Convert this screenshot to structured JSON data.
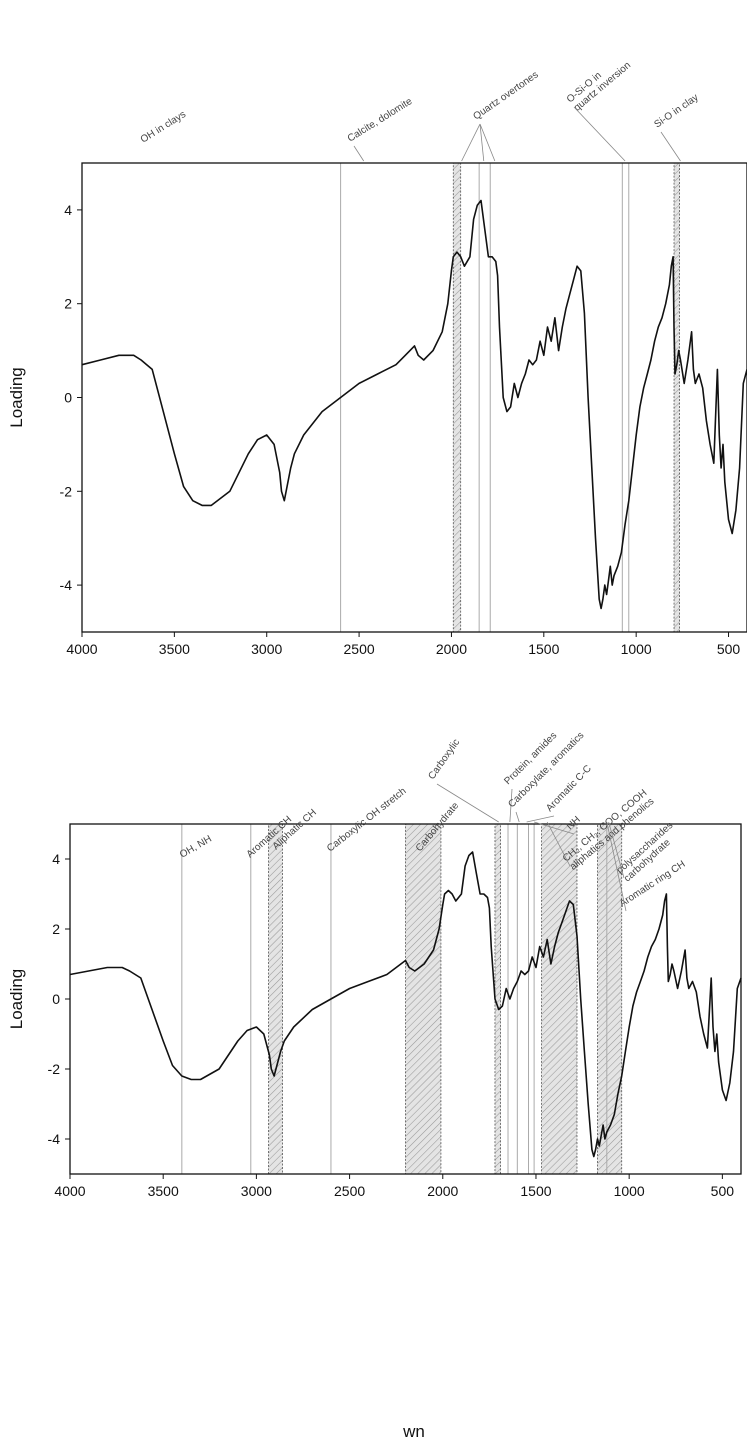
{
  "chart_data": [
    {
      "type": "line",
      "ylabel": "Loading",
      "xlabel": "",
      "xlim": [
        4000,
        400
      ],
      "ylim": [
        -5,
        5
      ],
      "xticks": [
        4000,
        3500,
        3000,
        2500,
        2000,
        1500,
        1000,
        500
      ],
      "yticks": [
        -4,
        -2,
        0,
        2,
        4
      ],
      "series": [
        {
          "x": [
            4000,
            3900,
            3800,
            3720,
            3680,
            3650,
            3620,
            3560,
            3500,
            3450,
            3400,
            3350,
            3300,
            3200,
            3100,
            3050,
            3000,
            2960,
            2930,
            2920,
            2905,
            2870,
            2850,
            2800,
            2700,
            2600,
            2500,
            2400,
            2300,
            2250,
            2200,
            2180,
            2150,
            2100,
            2050,
            2020,
            2000,
            1990,
            1970,
            1950,
            1930,
            1900,
            1880,
            1860,
            1840,
            1820,
            1800,
            1780,
            1760,
            1750,
            1740,
            1720,
            1700,
            1680,
            1660,
            1640,
            1620,
            1600,
            1580,
            1560,
            1540,
            1520,
            1500,
            1480,
            1460,
            1440,
            1420,
            1400,
            1380,
            1360,
            1340,
            1320,
            1300,
            1280,
            1260,
            1240,
            1220,
            1200,
            1190,
            1180,
            1170,
            1160,
            1150,
            1140,
            1130,
            1120,
            1100,
            1080,
            1060,
            1040,
            1020,
            1000,
            980,
            960,
            940,
            920,
            900,
            880,
            860,
            840,
            820,
            810,
            800,
            795,
            790,
            780,
            770,
            760,
            740,
            720,
            700,
            690,
            680,
            660,
            640,
            620,
            600,
            580,
            560,
            550,
            540,
            530,
            520,
            500,
            480,
            460,
            440,
            420,
            400
          ],
          "y": [
            0.7,
            0.8,
            0.9,
            0.9,
            0.8,
            0.7,
            0.6,
            -0.3,
            -1.2,
            -1.9,
            -2.2,
            -2.3,
            -2.3,
            -2.0,
            -1.2,
            -0.9,
            -0.8,
            -1.0,
            -1.6,
            -2.0,
            -2.2,
            -1.5,
            -1.2,
            -0.8,
            -0.3,
            0.0,
            0.3,
            0.5,
            0.7,
            0.9,
            1.1,
            0.9,
            0.8,
            1.0,
            1.4,
            2.0,
            2.7,
            3.0,
            3.1,
            3.0,
            2.8,
            3.0,
            3.8,
            4.1,
            4.2,
            3.6,
            3.0,
            3.0,
            2.9,
            2.6,
            1.5,
            0.0,
            -0.3,
            -0.2,
            0.3,
            0.0,
            0.3,
            0.5,
            0.8,
            0.7,
            0.8,
            1.2,
            0.9,
            1.5,
            1.2,
            1.7,
            1.0,
            1.5,
            1.9,
            2.2,
            2.5,
            2.8,
            2.7,
            1.8,
            0.0,
            -1.5,
            -3.0,
            -4.3,
            -4.5,
            -4.3,
            -4.0,
            -4.2,
            -3.9,
            -3.6,
            -4.0,
            -3.8,
            -3.6,
            -3.3,
            -2.7,
            -2.2,
            -1.5,
            -0.8,
            -0.2,
            0.2,
            0.5,
            0.8,
            1.2,
            1.5,
            1.7,
            2.0,
            2.4,
            2.8,
            3.0,
            1.5,
            0.5,
            0.7,
            1.0,
            0.8,
            0.3,
            0.8,
            1.4,
            0.6,
            0.3,
            0.5,
            0.2,
            -0.5,
            -1.0,
            -1.4,
            0.6,
            -0.8,
            -1.5,
            -1.0,
            -1.8,
            -2.6,
            -2.9,
            -2.4,
            -1.5,
            0.3,
            0.6
          ]
        }
      ],
      "annotations": [
        {
          "label": "OH in clays",
          "style": "none"
        },
        {
          "label": "Calcite, dolomite",
          "style": "line",
          "x": [
            2600
          ],
          "target": 2475
        },
        {
          "label": "Quartz overtones",
          "style": "hatch",
          "x": [
            1990,
            1950
          ],
          "lines": [
            1850,
            1790
          ],
          "targets": [
            1945,
            1825,
            1765
          ]
        },
        {
          "label": "O-Si-O in quartz inversion",
          "style": "line",
          "x": [
            1075,
            1040
          ],
          "target": 1060
        },
        {
          "label": "Si-O in clay",
          "style": "hatch",
          "x": [
            795,
            765
          ],
          "target": 760
        }
      ]
    },
    {
      "type": "line",
      "ylabel": "Loading",
      "xlabel": "wn",
      "xlim": [
        4000,
        400
      ],
      "ylim": [
        -5,
        5
      ],
      "xticks": [
        4000,
        3500,
        3000,
        2500,
        2000,
        1500,
        1000,
        500
      ],
      "yticks": [
        -4,
        -2,
        0,
        2,
        4
      ],
      "series": [
        {
          "x": [
            4000,
            3900,
            3800,
            3720,
            3680,
            3650,
            3620,
            3560,
            3500,
            3450,
            3400,
            3350,
            3300,
            3200,
            3100,
            3050,
            3000,
            2960,
            2930,
            2920,
            2905,
            2870,
            2850,
            2800,
            2700,
            2600,
            2500,
            2400,
            2300,
            2250,
            2200,
            2180,
            2150,
            2100,
            2050,
            2020,
            2000,
            1990,
            1970,
            1950,
            1930,
            1900,
            1880,
            1860,
            1840,
            1820,
            1800,
            1780,
            1760,
            1750,
            1740,
            1720,
            1700,
            1680,
            1660,
            1640,
            1620,
            1600,
            1580,
            1560,
            1540,
            1520,
            1500,
            1480,
            1460,
            1440,
            1420,
            1400,
            1380,
            1360,
            1340,
            1320,
            1300,
            1280,
            1260,
            1240,
            1220,
            1200,
            1190,
            1180,
            1170,
            1160,
            1150,
            1140,
            1130,
            1120,
            1100,
            1080,
            1060,
            1040,
            1020,
            1000,
            980,
            960,
            940,
            920,
            900,
            880,
            860,
            840,
            820,
            810,
            800,
            795,
            790,
            780,
            770,
            760,
            740,
            720,
            700,
            690,
            680,
            660,
            640,
            620,
            600,
            580,
            560,
            550,
            540,
            530,
            520,
            500,
            480,
            460,
            440,
            420,
            400
          ],
          "y": [
            0.7,
            0.8,
            0.9,
            0.9,
            0.8,
            0.7,
            0.6,
            -0.3,
            -1.2,
            -1.9,
            -2.2,
            -2.3,
            -2.3,
            -2.0,
            -1.2,
            -0.9,
            -0.8,
            -1.0,
            -1.6,
            -2.0,
            -2.2,
            -1.5,
            -1.2,
            -0.8,
            -0.3,
            0.0,
            0.3,
            0.5,
            0.7,
            0.9,
            1.1,
            0.9,
            0.8,
            1.0,
            1.4,
            2.0,
            2.7,
            3.0,
            3.1,
            3.0,
            2.8,
            3.0,
            3.8,
            4.1,
            4.2,
            3.6,
            3.0,
            3.0,
            2.9,
            2.6,
            1.5,
            0.0,
            -0.3,
            -0.2,
            0.3,
            0.0,
            0.3,
            0.5,
            0.8,
            0.7,
            0.8,
            1.2,
            0.9,
            1.5,
            1.2,
            1.7,
            1.0,
            1.5,
            1.9,
            2.2,
            2.5,
            2.8,
            2.7,
            1.8,
            0.0,
            -1.5,
            -3.0,
            -4.3,
            -4.5,
            -4.3,
            -4.0,
            -4.2,
            -3.9,
            -3.6,
            -4.0,
            -3.8,
            -3.6,
            -3.3,
            -2.7,
            -2.2,
            -1.5,
            -0.8,
            -0.2,
            0.2,
            0.5,
            0.8,
            1.2,
            1.5,
            1.7,
            2.0,
            2.4,
            2.8,
            3.0,
            1.5,
            0.5,
            0.7,
            1.0,
            0.8,
            0.3,
            0.8,
            1.4,
            0.6,
            0.3,
            0.5,
            0.2,
            -0.5,
            -1.0,
            -1.4,
            0.6,
            -0.8,
            -1.5,
            -1.0,
            -1.8,
            -2.6,
            -2.9,
            -2.4,
            -1.5,
            0.3,
            0.6
          ]
        }
      ],
      "annotations": [
        {
          "label": "OH, NH",
          "style": "line",
          "x": [
            3400
          ]
        },
        {
          "label": "Aromatic CH",
          "style": "line",
          "x": [
            3030
          ]
        },
        {
          "label": "Aliphatic CH",
          "style": "hatch",
          "x": [
            2935,
            2860
          ]
        },
        {
          "label": "Carboxylic OH stretch",
          "style": "line",
          "x": [
            2600
          ]
        },
        {
          "label": "Carbohydrate",
          "style": "hatch",
          "x": [
            2200,
            2010
          ]
        },
        {
          "label": "Carboxylic",
          "style": "hatch",
          "x": [
            1720,
            1690
          ],
          "target": 1700
        },
        {
          "label": "Protein, amides",
          "style": "line",
          "x": [
            1650
          ],
          "target": 1640
        },
        {
          "label": "Carboxylate, aromatics",
          "style": "line",
          "x": [
            1600
          ],
          "target": 1590
        },
        {
          "label": "Aromatic C-C",
          "style": "line",
          "x": [
            1540
          ],
          "target": 1550
        },
        {
          "label": "NH",
          "style": "line",
          "x": [
            1510
          ],
          "target": 1510
        },
        {
          "label": "CH₂, CH₃, COO, COOH aliphatics and phenolics",
          "style": "hatch",
          "x": [
            1470,
            1280
          ],
          "target": 1440
        },
        {
          "label": "polysaccharides carbohydrate",
          "style": "hatch",
          "x": [
            1170,
            1040
          ],
          "target": 1110
        },
        {
          "label": "Aromatic ring CH",
          "style": "line",
          "x": [
            1120
          ],
          "target": 1120
        }
      ]
    }
  ]
}
